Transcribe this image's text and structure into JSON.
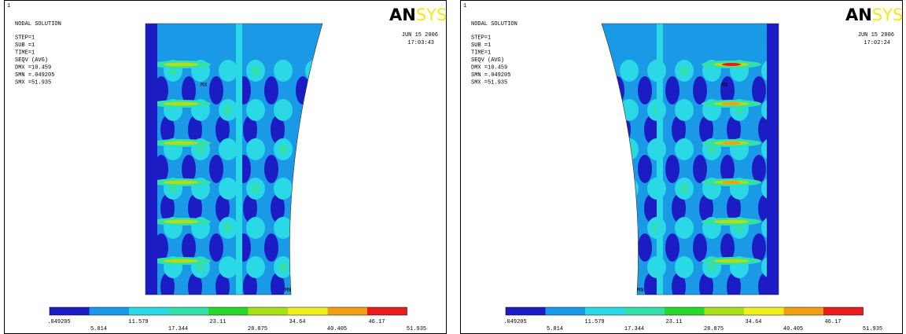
{
  "legend_colors": [
    "#1c1cc4",
    "#1a9ae6",
    "#2ad8e6",
    "#34e0a8",
    "#28d828",
    "#a8e01c",
    "#f0f020",
    "#f0a014",
    "#e81c1c"
  ],
  "panels": [
    {
      "number": "1",
      "info": [
        "NODAL SOLUTION",
        "STEP=1",
        "SUB =1",
        "TIME=1",
        "SEQV       (AVG)",
        "DMX =10.459",
        "SMN =.049205",
        "SMX =51.935"
      ],
      "date": "JUN 15 2006",
      "time": "17:03:43",
      "logo_an": "AN",
      "logo_sys": "SYS",
      "mx": "MX",
      "mn": "MN",
      "legend_labels": [
        ".049205",
        "5.814",
        "11.579",
        "17.344",
        "23.11",
        "28.875",
        "34.64",
        "40.405",
        "46.17",
        "51.935"
      ]
    },
    {
      "number": "1",
      "info": [
        "NODAL SOLUTION",
        "STEP=1",
        "SUB =1",
        "TIME=1",
        "SEQV       (AVG)",
        "DMX =10.459",
        "SMN =.049205",
        "SMX =51.935"
      ],
      "date": "JUN 15 2006",
      "time": "17:02:24",
      "logo_an": "AN",
      "logo_sys": "SYS",
      "mx": "MX",
      "mn": "MN",
      "legend_labels": [
        ".049205",
        "5.814",
        "11.579",
        "17.344",
        "23.11",
        "28.875",
        "34.64",
        "40.405",
        "46.17",
        "51.935"
      ]
    }
  ]
}
